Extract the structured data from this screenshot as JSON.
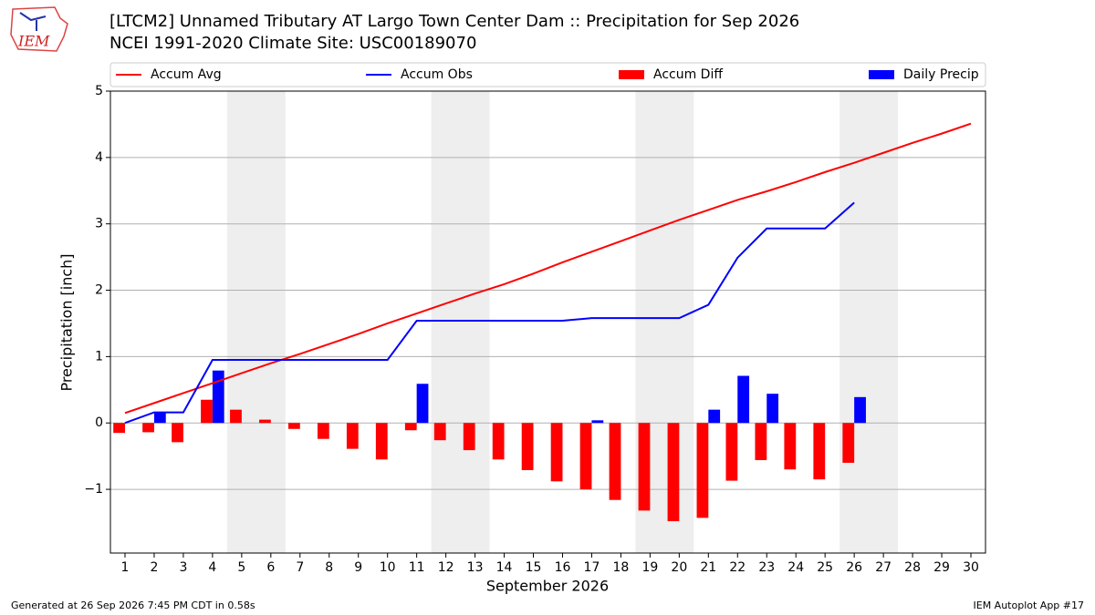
{
  "chart_data": {
    "type": "bar",
    "title": "[LTCM2] Unnamed Tributary  AT Largo Town Center Dam :: Precipitation for Sep 2026",
    "subtitle": "NCEI 1991-2020 Climate Site: USC00189070",
    "logo_text": "IEM",
    "x_label": "September 2026",
    "y_label": "Precipitation [inch]",
    "footer_left": "Generated at 26 Sep 2026 7:45 PM CDT in 0.58s",
    "footer_right": "IEM Autoplot App #17",
    "x": [
      1,
      2,
      3,
      4,
      5,
      6,
      7,
      8,
      9,
      10,
      11,
      12,
      13,
      14,
      15,
      16,
      17,
      18,
      19,
      20,
      21,
      22,
      23,
      24,
      25,
      26,
      27,
      28,
      29,
      30
    ],
    "xlim": [
      0.5,
      30.5
    ],
    "xticks": [
      1,
      2,
      3,
      4,
      5,
      6,
      7,
      8,
      9,
      10,
      11,
      12,
      13,
      14,
      15,
      16,
      17,
      18,
      19,
      20,
      21,
      22,
      23,
      24,
      25,
      26,
      27,
      28,
      29,
      30
    ],
    "ylim": [
      -1.96,
      5
    ],
    "yticks": [
      {
        "value": -1,
        "label": "−1"
      },
      0,
      1,
      2,
      3,
      4,
      5
    ],
    "grid": true,
    "legend": "top",
    "shaded_spans": [
      [
        4.5,
        6.5
      ],
      [
        11.5,
        13.5
      ],
      [
        18.5,
        20.5
      ],
      [
        25.5,
        27.5
      ]
    ],
    "series": [
      {
        "name": "Accum Avg",
        "type": "line",
        "color": "#ff0000",
        "values": [
          0.15,
          0.3,
          0.45,
          0.6,
          0.75,
          0.9,
          1.04,
          1.19,
          1.34,
          1.5,
          1.65,
          1.8,
          1.95,
          2.09,
          2.25,
          2.42,
          2.58,
          2.74,
          2.9,
          3.06,
          3.21,
          3.36,
          3.49,
          3.63,
          3.78,
          3.92,
          4.07,
          4.22,
          4.36,
          4.51
        ]
      },
      {
        "name": "Accum Obs",
        "type": "line",
        "color": "#0000ff",
        "values": [
          0.0,
          0.16,
          0.16,
          0.95,
          0.95,
          0.95,
          0.95,
          0.95,
          0.95,
          0.95,
          1.54,
          1.54,
          1.54,
          1.54,
          1.54,
          1.54,
          1.58,
          1.58,
          1.58,
          1.58,
          1.78,
          2.49,
          2.93,
          2.93,
          2.93,
          3.32,
          null,
          null,
          null,
          null
        ]
      },
      {
        "name": "Accum Diff",
        "type": "bar",
        "side": "left",
        "color": "#ff0000",
        "values": [
          -0.15,
          -0.14,
          -0.29,
          0.35,
          0.2,
          0.05,
          -0.09,
          -0.24,
          -0.39,
          -0.55,
          -0.11,
          -0.26,
          -0.41,
          -0.55,
          -0.71,
          -0.88,
          -1.0,
          -1.16,
          -1.32,
          -1.48,
          -1.43,
          -0.87,
          -0.56,
          -0.7,
          -0.85,
          -0.6,
          null,
          null,
          null,
          null
        ]
      },
      {
        "name": "Daily Precip",
        "type": "bar",
        "side": "right",
        "color": "#0000ff",
        "values": [
          0,
          0.16,
          0,
          0.79,
          0,
          0,
          0,
          0,
          0,
          0,
          0.59,
          0,
          0,
          0,
          0,
          0,
          0.04,
          0,
          0,
          0,
          0.2,
          0.71,
          0.44,
          0,
          0,
          0.39,
          null,
          null,
          null,
          null
        ]
      }
    ]
  }
}
